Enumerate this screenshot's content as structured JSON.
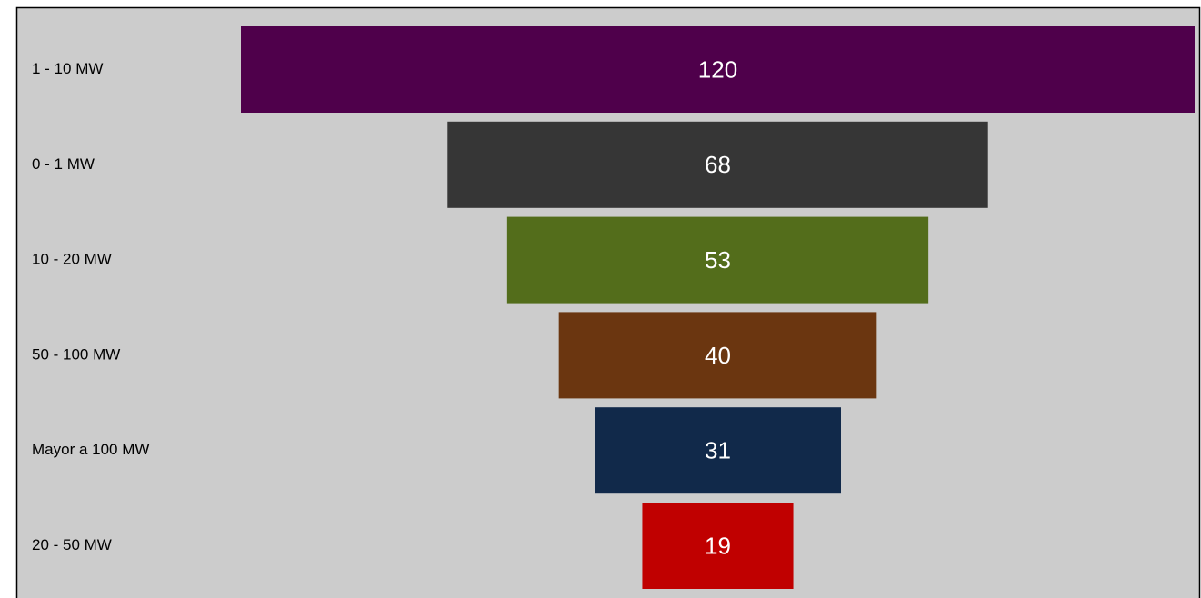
{
  "chart_data": {
    "type": "funnel",
    "categories": [
      "1 - 10 MW",
      "0 - 1 MW",
      "10 - 20 MW",
      "50 - 100 MW",
      "Mayor a 100 MW",
      "20 - 50 MW"
    ],
    "values": [
      120,
      68,
      53,
      40,
      31,
      19
    ],
    "colors": [
      "#4f004b",
      "#363636",
      "#536d1b",
      "#6b3610",
      "#11294a",
      "#c00000"
    ]
  }
}
